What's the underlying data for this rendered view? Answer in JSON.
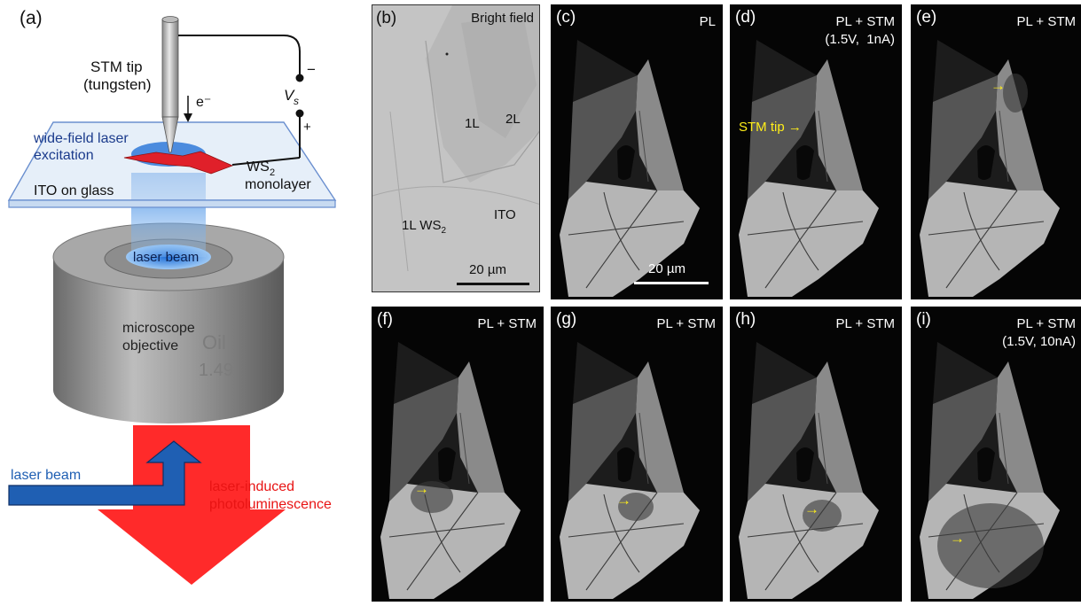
{
  "panel_a": {
    "label": "(a)",
    "stm_tip": "STM tip",
    "stm_tip_material": "(tungsten)",
    "electron": "e⁻",
    "voltage": "V",
    "voltage_sub": "s",
    "minus": "−",
    "plus": "+",
    "excitation_1": "wide-field laser",
    "excitation_2": "excitation",
    "ws2_1": "WS",
    "ws2_sub": "2",
    "ws2_2": "monolayer",
    "ito": "ITO on glass",
    "laser_beam_top": "laser beam",
    "objective_1": "microscope",
    "objective_2": "objective",
    "oil": "Oil",
    "na": "1.49",
    "laser_beam_side": "laser beam",
    "pl_1": "laser-induced",
    "pl_2": "photoluminescence",
    "colors": {
      "blue": "#1f5fb3",
      "red": "#ff2020",
      "dark_blue_text": "#1b3b8c"
    }
  },
  "panel_b": {
    "label": "(b)",
    "title": "Bright field",
    "label_1L": "1L",
    "label_2L": "2L",
    "label_1L_ws2": "1L WS",
    "label_1L_ws2_sub": "2",
    "label_ito": "ITO",
    "scale": "20 µm"
  },
  "panels": [
    {
      "id": "c",
      "label": "(c)",
      "title": "PL",
      "subtitle": "",
      "scale": "20 µm",
      "annot": ""
    },
    {
      "id": "d",
      "label": "(d)",
      "title": "PL + STM",
      "subtitle": "(1.5V,  1nA)",
      "scale": "",
      "annot": "STM tip →"
    },
    {
      "id": "e",
      "label": "(e)",
      "title": "PL + STM",
      "subtitle": "",
      "scale": "",
      "annot": "→"
    },
    {
      "id": "f",
      "label": "(f)",
      "title": "PL + STM",
      "subtitle": "",
      "scale": "",
      "annot": "→"
    },
    {
      "id": "g",
      "label": "(g)",
      "title": "PL + STM",
      "subtitle": "",
      "scale": "",
      "annot": "→"
    },
    {
      "id": "h",
      "label": "(h)",
      "title": "PL + STM",
      "subtitle": "",
      "scale": "",
      "annot": "→"
    },
    {
      "id": "i",
      "label": "(i)",
      "title": "PL + STM",
      "subtitle": "(1.5V, 10nA)",
      "scale": "",
      "annot": "→"
    }
  ]
}
